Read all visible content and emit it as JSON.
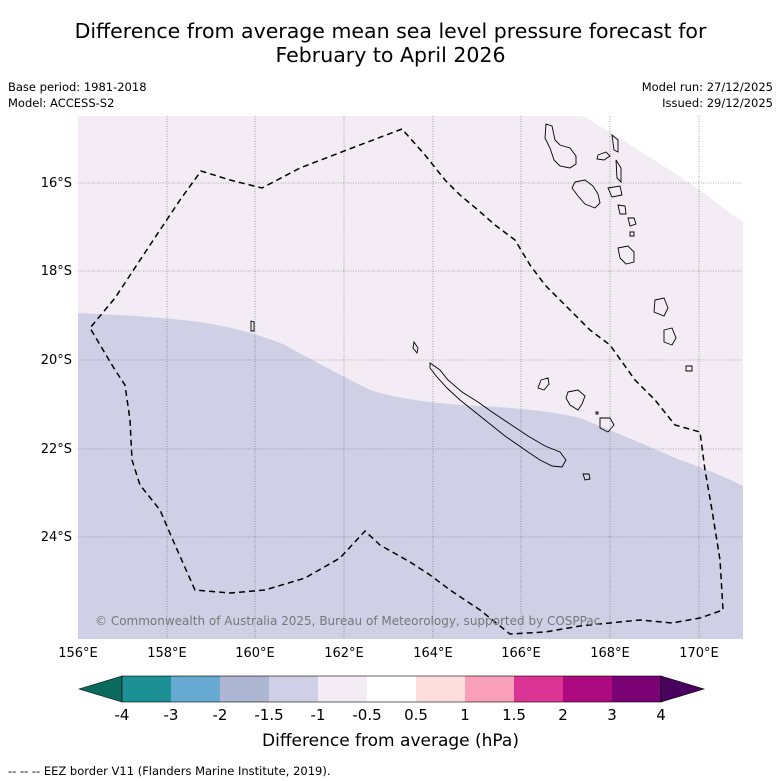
{
  "title_line1": "Difference from average mean sea level pressure forecast for",
  "title_line2": "February to April 2026",
  "base_period": "Base period: 1981-2018",
  "model": "Model: ACCESS-S2",
  "model_run": "Model run: 27/12/2025",
  "issued": "Issued: 29/12/2025",
  "latitudes": [
    "16°S",
    "18°S",
    "20°S",
    "22°S",
    "24°S"
  ],
  "longitudes": [
    "156°E",
    "158°E",
    "160°E",
    "162°E",
    "164°E",
    "166°E",
    "168°E",
    "170°E"
  ],
  "copyright": "© Commonwealth of Australia 2025, Bureau of Meteorology, supported by COSPPac",
  "colorbar": {
    "title": "Difference from average (hPa)",
    "ticks": [
      "-4",
      "-3",
      "-2",
      "-1.5",
      "-1",
      "-0.5",
      "0.5",
      "1",
      "1.5",
      "2",
      "3",
      "4"
    ],
    "colors": [
      "#0b6a5e",
      "#1b9196",
      "#66a9d1",
      "#aeb7d2",
      "#cfd0e6",
      "#f3ecf5",
      "#ffffff",
      "#ffdede",
      "#f99fb9",
      "#dc3495",
      "#ad0a80",
      "#7b0275",
      "#4a005e"
    ]
  },
  "map_regions": {
    "band_-1_to_-0.5": "#cfd0e6",
    "band_-0.5_to_0.5": "#f3ecf5"
  },
  "eez_legend": "--  --  -- EEZ border V11 (Flanders Marine Institute, 2019)."
}
